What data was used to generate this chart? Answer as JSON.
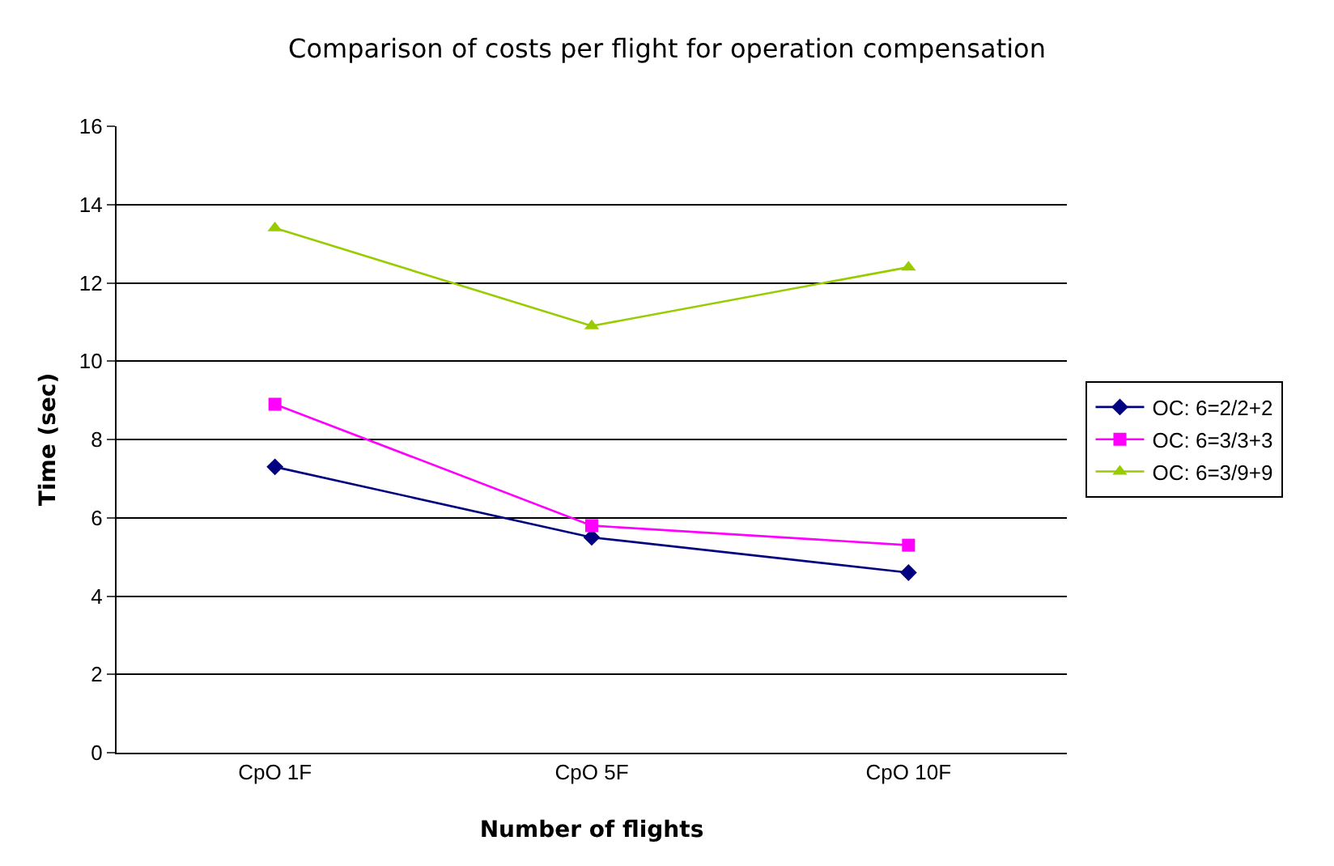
{
  "chart_data": {
    "type": "line",
    "title": "Comparison of costs per flight for operation compensation",
    "xlabel": "Number of flights",
    "ylabel": "Time (sec)",
    "categories": [
      "CpO 1F",
      "CpO 5F",
      "CpO 10F"
    ],
    "series": [
      {
        "name": "OC: 6=2/2+2",
        "color": "#000080",
        "values": [
          7.3,
          5.5,
          4.6
        ],
        "marker": "diamond"
      },
      {
        "name": "OC: 6=3/3+3",
        "color": "#ff00ff",
        "values": [
          8.9,
          5.8,
          5.3
        ],
        "marker": "square"
      },
      {
        "name": "OC: 6=3/9+9",
        "color": "#99cc00",
        "values": [
          13.4,
          10.9,
          12.4
        ],
        "marker": "triangle"
      }
    ],
    "ylim": [
      0,
      16
    ],
    "yticks": [
      0,
      2,
      4,
      6,
      8,
      10,
      12,
      14,
      16
    ],
    "grid": "y",
    "legend": "right",
    "line_style": "solid"
  }
}
